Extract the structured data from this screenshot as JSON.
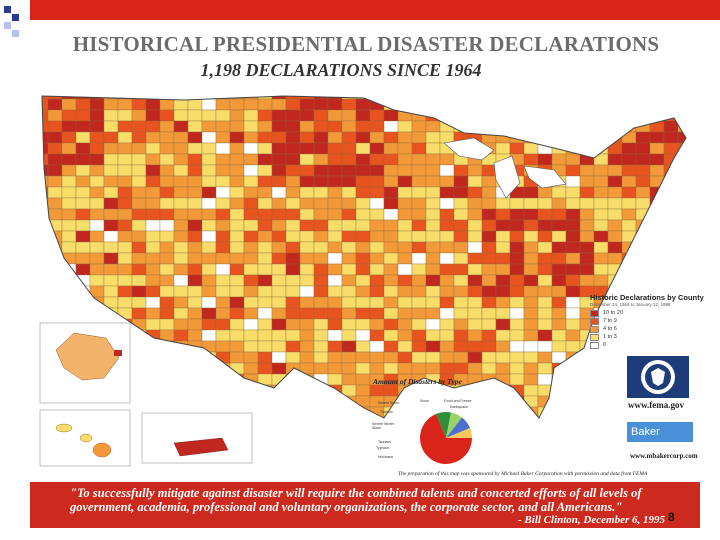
{
  "slide": {
    "title": "HISTORICAL PRESIDENTIAL DISASTER DECLARATIONS",
    "subtitle": "1,198 DECLARATIONS SINCE 1964",
    "page_number": "8"
  },
  "legend": {
    "title": "Historic Declarations by County",
    "date_range": "December 24, 1964 to January 12, 1998",
    "items": [
      {
        "label": "10 to 20",
        "color": "#c0271e"
      },
      {
        "label": "7 to 9",
        "color": "#e8541f"
      },
      {
        "label": "4 to 6",
        "color": "#f29a3a"
      },
      {
        "label": "1 to 3",
        "color": "#f8dd6a"
      },
      {
        "label": "0",
        "color": "#ffffff"
      }
    ]
  },
  "pie": {
    "title": "Amount of Disasters by Type",
    "labels": [
      "Snow",
      "Severe Storm",
      "Flood and Freeze",
      "Earthquake",
      "Tornado",
      "Severe Winter Storm",
      "Typhoon",
      "Tsunami",
      "Hurricane"
    ]
  },
  "logos": {
    "fema_url": "www.fema.gov",
    "baker_name": "Baker",
    "baker_url": "www.mbakercorp.com"
  },
  "sponsor_note": "The preparation of this map was sponsored by Michael Baker Corporation with permission and data from FEMA",
  "quote": {
    "text": "\"To successfully mitigate against disaster will require the combined talents and concerted efforts of all levels of government, academia, professional and voluntary organizations, the corporate sector, and all Americans.\"",
    "attribution": "- Bill Clinton, December 6, 1995"
  },
  "colors": {
    "accent_red": "#cc2a1e",
    "title_gray": "#6b6b6b"
  }
}
